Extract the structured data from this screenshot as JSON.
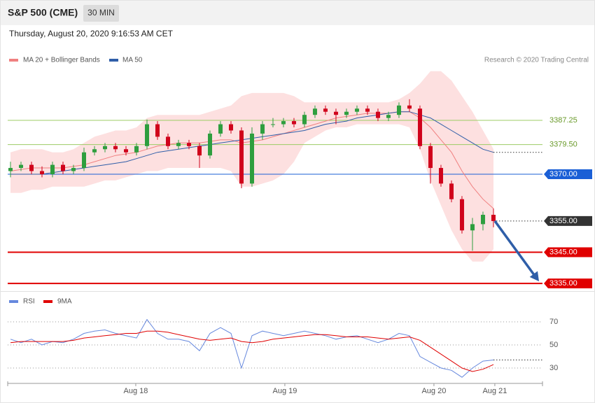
{
  "header": {
    "title": "S&P 500 (CME)",
    "interval": "30 MIN",
    "timestamp": "Thursday, August 20, 2020 9:16:53 AM CET",
    "credit": "Research © 2020 Trading Central"
  },
  "chart_data": [
    {
      "type": "candlestick",
      "xlim": [
        -0.267,
        50.67
      ],
      "ylim": [
        3332.8,
        3410.1
      ],
      "up_color": "#2e9e3e",
      "down_color": "#d0021b",
      "open": [
        3371,
        3372,
        3373,
        3371,
        3370,
        3373,
        3371,
        3372,
        3377,
        3378,
        3379,
        3378,
        3377,
        3379,
        3386,
        3382,
        3379,
        3380,
        3379,
        3376,
        3383,
        3386,
        3384,
        3367,
        3383,
        3386,
        3386,
        3387,
        3386,
        3389,
        3391,
        3390,
        3389,
        3390,
        3391,
        3390,
        3388,
        3389,
        3392,
        3391,
        3379,
        3372,
        3367,
        3362,
        3352,
        3354,
        3357
      ],
      "high": [
        3374,
        3374,
        3374,
        3372.5,
        3374,
        3374,
        3373,
        3378.5,
        3379,
        3380,
        3380,
        3379,
        3380,
        3387.5,
        3387,
        3383,
        3381,
        3381,
        3380,
        3384,
        3387,
        3387,
        3385,
        3385,
        3387,
        3388,
        3388,
        3388,
        3390,
        3392,
        3392,
        3391,
        3391,
        3392,
        3392,
        3391,
        3390,
        3393,
        3394,
        3392,
        3380,
        3373,
        3368,
        3363,
        3356,
        3358,
        3359
      ],
      "low": [
        3369,
        3371,
        3370,
        3369,
        3369,
        3370,
        3370,
        3371,
        3376,
        3377,
        3377,
        3376,
        3376,
        3378,
        3381,
        3378,
        3378,
        3378,
        3372,
        3375,
        3382,
        3383,
        3365.5,
        3366,
        3381,
        3385,
        3385,
        3385,
        3385,
        3388,
        3389,
        3386,
        3388,
        3389,
        3389,
        3387,
        3387,
        3388,
        3390,
        3378,
        3367,
        3366,
        3361,
        3351,
        3345.5,
        3352,
        3353
      ],
      "close": [
        3372,
        3373,
        3371,
        3370,
        3373,
        3371,
        3372,
        3377,
        3378,
        3379,
        3378,
        3377,
        3379,
        3386,
        3382,
        3379,
        3380,
        3379,
        3376,
        3383,
        3386,
        3384,
        3367,
        3383,
        3386,
        3386,
        3387,
        3386,
        3389,
        3391,
        3390,
        3389,
        3390,
        3391,
        3390,
        3388,
        3389,
        3392,
        3391,
        3379,
        3372,
        3367,
        3362,
        3352,
        3354,
        3357,
        3355
      ],
      "series": [
        {
          "name": "MA 20 + Bollinger Bands",
          "color": "#f08080",
          "band_color": "#fde0e0",
          "values": [
            3371,
            3371.5,
            3372,
            3372,
            3372,
            3372,
            3372.5,
            3373,
            3374,
            3375,
            3376,
            3376.5,
            3377,
            3378,
            3379,
            3379.5,
            3380,
            3380,
            3380,
            3380.5,
            3381,
            3381,
            3380,
            3380.5,
            3381,
            3382,
            3383,
            3384,
            3385,
            3386,
            3387,
            3388,
            3388.5,
            3389,
            3389.5,
            3389.5,
            3389.5,
            3390,
            3390,
            3388,
            3385,
            3381,
            3377,
            3371,
            3366,
            3362,
            3359
          ],
          "upper": [
            3377,
            3378,
            3378,
            3378,
            3377,
            3377,
            3378,
            3380,
            3382,
            3383,
            3384,
            3384,
            3385,
            3388,
            3389,
            3389,
            3389,
            3389,
            3389,
            3390,
            3391,
            3392,
            3395,
            3396,
            3396,
            3396,
            3396,
            3395,
            3393,
            3393,
            3393,
            3393,
            3393,
            3393,
            3393,
            3393,
            3393,
            3394,
            3396,
            3399,
            3403,
            3403,
            3400,
            3395,
            3390,
            3384,
            3378
          ],
          "lower": [
            3364,
            3364,
            3365,
            3365,
            3366,
            3366,
            3366,
            3366,
            3367,
            3368,
            3368,
            3369,
            3370,
            3371,
            3371,
            3372,
            3372,
            3372,
            3372,
            3372,
            3372,
            3371,
            3366,
            3366,
            3367,
            3368,
            3370,
            3374,
            3380,
            3382,
            3384,
            3385,
            3385,
            3386,
            3386,
            3386,
            3386,
            3386,
            3385,
            3378,
            3368,
            3360,
            3352,
            3346,
            3342,
            3342,
            3346
          ]
        },
        {
          "name": "MA 50",
          "color": "#2f5ea8",
          "values": [
            3370,
            3370,
            3370,
            3370,
            3370.5,
            3371,
            3371.5,
            3372,
            3372.5,
            3373,
            3373.5,
            3374,
            3375,
            3376,
            3377,
            3377.5,
            3378,
            3378.5,
            3379,
            3379.5,
            3380,
            3380.5,
            3381,
            3381.5,
            3382,
            3382.5,
            3383,
            3383.5,
            3384,
            3385,
            3386,
            3386.5,
            3387,
            3388,
            3388.5,
            3389,
            3389.5,
            3390,
            3390,
            3389,
            3388,
            3386,
            3384,
            3382,
            3380,
            3378,
            3377
          ]
        }
      ],
      "levels": [
        {
          "value": 3387.25,
          "label": "3387.25",
          "color": "#9ccc65",
          "text_color": "#6a9a2a",
          "style": "text",
          "line": "solid"
        },
        {
          "value": 3379.5,
          "label": "3379.50",
          "color": "#9ccc65",
          "text_color": "#6a9a2a",
          "style": "text",
          "line": "solid"
        },
        {
          "value": 3370,
          "label": "3370.00",
          "color": "#1a5fd6",
          "text_color": "#ffffff",
          "style": "box",
          "line": "solid"
        },
        {
          "value": 3355,
          "label": "3355.00",
          "color": "#333333",
          "text_color": "#ffffff",
          "style": "box",
          "line": "dotted"
        },
        {
          "value": 3345,
          "label": "3345.00",
          "color": "#e00000",
          "text_color": "#ffffff",
          "style": "box",
          "line": "thick"
        },
        {
          "value": 3335,
          "label": "3335.00",
          "color": "#e00000",
          "text_color": "#ffffff",
          "style": "box",
          "line": "thick"
        }
      ]
    },
    {
      "type": "line",
      "xlim": [
        -0.267,
        50.67
      ],
      "ylim": [
        16.67,
        94.24
      ],
      "yticks": [
        70,
        50,
        30
      ],
      "xticks": [
        {
          "value": 11.93,
          "label": "Aug 18"
        },
        {
          "value": 26.13,
          "label": "Aug 19"
        },
        {
          "value": 40.33,
          "label": "Aug 20"
        },
        {
          "value": 46.13,
          "label": "Aug 21"
        }
      ],
      "series": [
        {
          "name": "RSI",
          "color": "#6688dd",
          "values": [
            55,
            52,
            55,
            50,
            53,
            52,
            55,
            60,
            62,
            63,
            60,
            58,
            56,
            72,
            60,
            55,
            55,
            53,
            45,
            60,
            65,
            60,
            30,
            58,
            62,
            60,
            58,
            60,
            62,
            60,
            58,
            55,
            57,
            58,
            55,
            52,
            55,
            60,
            58,
            40,
            35,
            30,
            28,
            22,
            30,
            36,
            37
          ]
        },
        {
          "name": "9MA",
          "color": "#e00000",
          "values": [
            52,
            53,
            53,
            53,
            53,
            53,
            54,
            56,
            57,
            58,
            59,
            60,
            60,
            62,
            62,
            61,
            59,
            57,
            55,
            54,
            55,
            56,
            53,
            52,
            53,
            55,
            56,
            57,
            58,
            59,
            59,
            58,
            57,
            57,
            57,
            56,
            55,
            56,
            57,
            54,
            48,
            42,
            36,
            30,
            27,
            29,
            33
          ]
        }
      ]
    }
  ]
}
